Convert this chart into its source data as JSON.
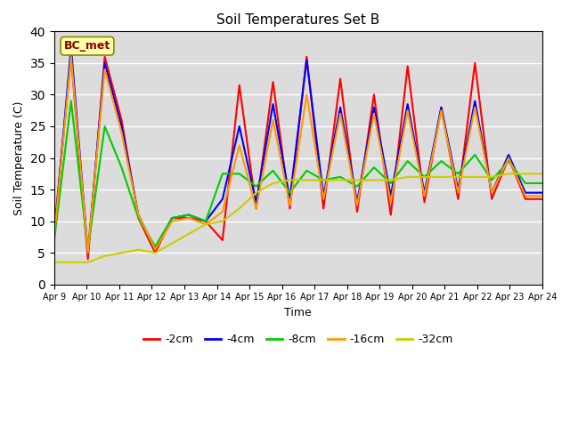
{
  "title": "Soil Temperatures Set B",
  "xlabel": "Time",
  "ylabel": "Soil Temperature (C)",
  "ylim": [
    0,
    40
  ],
  "annotation": "BC_met",
  "legend_labels": [
    "-2cm",
    "-4cm",
    "-8cm",
    "-16cm",
    "-32cm"
  ],
  "legend_colors": [
    "#ff0000",
    "#0000ff",
    "#00cc00",
    "#ff9900",
    "#cccc00"
  ],
  "bg_color": "#dcdcdc",
  "tick_labels": [
    "Apr 9",
    "Apr 10",
    "Apr 11",
    "Apr 12",
    "Apr 13",
    "Apr 14",
    "Apr 15",
    "Apr 16",
    "Apr 17",
    "Apr 18",
    "Apr 19",
    "Apr 20",
    "Apr 21",
    "Apr 22",
    "Apr 23",
    "Apr 24"
  ],
  "t2cm": [
    8.5,
    36.0,
    4.0,
    36.0,
    26.0,
    10.5,
    5.0,
    10.5,
    10.5,
    10.0,
    7.0,
    31.5,
    12.0,
    32.0,
    12.0,
    36.0,
    12.0,
    32.5,
    11.5,
    30.0,
    11.0,
    34.5,
    13.0,
    28.0,
    13.5,
    35.0,
    13.5,
    20.0,
    13.5,
    13.5
  ],
  "t4cm": [
    7.5,
    37.5,
    5.0,
    35.0,
    25.0,
    11.0,
    5.5,
    10.5,
    11.0,
    10.0,
    13.5,
    25.0,
    13.0,
    28.5,
    13.5,
    35.5,
    14.0,
    28.0,
    13.0,
    28.0,
    14.0,
    28.5,
    14.5,
    28.0,
    15.0,
    29.0,
    14.5,
    20.5,
    14.5,
    14.5
  ],
  "t8cm": [
    7.0,
    29.0,
    5.5,
    25.0,
    18.5,
    10.5,
    6.0,
    10.5,
    11.0,
    10.0,
    17.5,
    17.5,
    15.5,
    18.0,
    14.5,
    18.0,
    16.5,
    17.0,
    15.5,
    18.5,
    16.0,
    19.5,
    17.0,
    19.5,
    17.5,
    20.5,
    16.5,
    19.5,
    16.0,
    16.0
  ],
  "t16cm": [
    7.5,
    36.0,
    5.0,
    34.0,
    24.0,
    11.0,
    5.5,
    10.0,
    10.5,
    9.5,
    11.5,
    22.0,
    12.0,
    26.0,
    12.5,
    30.0,
    13.5,
    27.0,
    12.5,
    27.0,
    13.0,
    27.5,
    14.0,
    27.5,
    14.5,
    28.0,
    14.5,
    20.0,
    14.0,
    14.0
  ],
  "t32cm": [
    3.5,
    3.5,
    3.5,
    4.5,
    5.0,
    5.5,
    5.0,
    6.5,
    8.0,
    9.5,
    10.0,
    12.0,
    14.5,
    16.0,
    16.5,
    16.5,
    16.5,
    16.5,
    16.5,
    16.5,
    16.5,
    17.0,
    17.0,
    17.0,
    17.0,
    17.0,
    17.0,
    17.5,
    17.5,
    17.5
  ],
  "n_points": 30
}
